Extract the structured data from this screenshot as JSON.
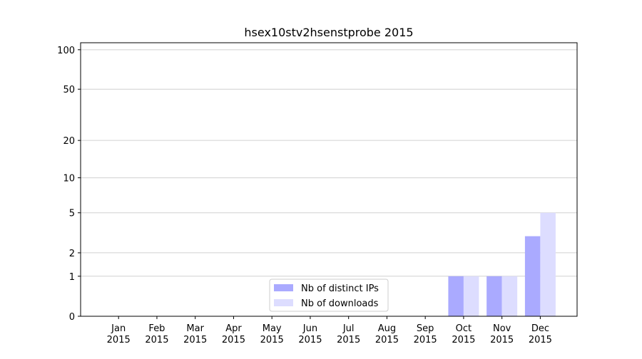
{
  "chart_data": {
    "type": "bar",
    "title": "hsex10stv2hsenstprobe 2015",
    "categories": [
      "Jan 2015",
      "Feb 2015",
      "Mar 2015",
      "Apr 2015",
      "May 2015",
      "Jun 2015",
      "Jul 2015",
      "Aug 2015",
      "Sep 2015",
      "Oct 2015",
      "Nov 2015",
      "Dec 2015"
    ],
    "series": [
      {
        "name": "Nb of distinct IPs",
        "color": "#aaaaff",
        "values": [
          0,
          0,
          0,
          0,
          0,
          0,
          0,
          0,
          0,
          1,
          1,
          3
        ]
      },
      {
        "name": "Nb of downloads",
        "color": "#ddddff",
        "values": [
          0,
          0,
          0,
          0,
          0,
          0,
          0,
          0,
          0,
          1,
          1,
          5
        ]
      }
    ],
    "yscale": "log1p",
    "ylim": [
      0,
      113
    ],
    "yticks": [
      0,
      1,
      2,
      5,
      10,
      20,
      50,
      100
    ],
    "grid": true,
    "legend": "lower center"
  }
}
